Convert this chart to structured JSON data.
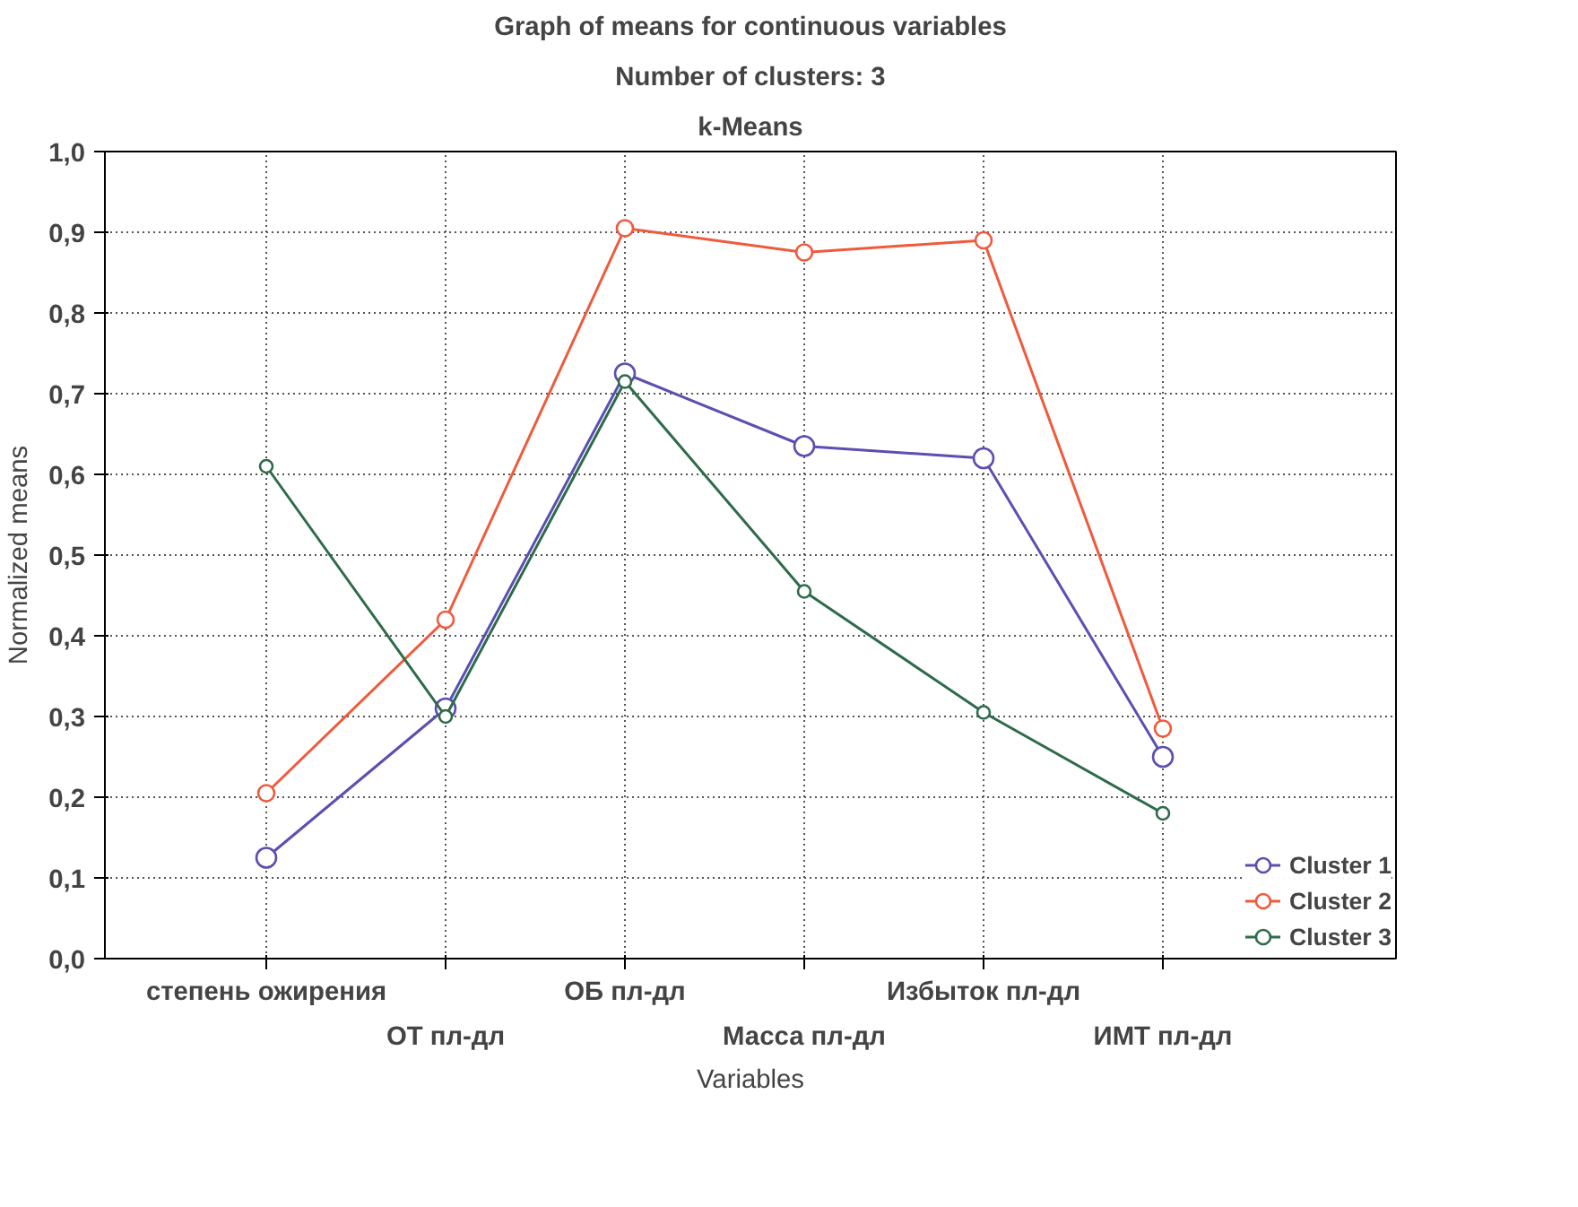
{
  "chart_data": {
    "type": "line",
    "title": "Graph of means for continuous variables",
    "subtitle": "Number of clusters: 3",
    "annotations": [
      "k-Means"
    ],
    "xlabel": "Variables",
    "ylabel": "Normalized means",
    "categories": [
      "степень ожирения",
      "ОТ пл-дл",
      "ОБ пл-дл",
      "Масса пл-дл",
      "Избыток пл-дл",
      "ИМТ пл-дл"
    ],
    "series": [
      {
        "name": "Cluster 1",
        "color": "#5b4fb0",
        "values": [
          0.125,
          0.31,
          0.725,
          0.635,
          0.62,
          0.25
        ]
      },
      {
        "name": "Cluster 2",
        "color": "#f05a3c",
        "values": [
          0.205,
          0.42,
          0.905,
          0.875,
          0.89,
          0.285
        ]
      },
      {
        "name": "Cluster 3",
        "color": "#2e6b4a",
        "values": [
          0.61,
          0.3,
          0.715,
          0.455,
          0.305,
          0.18
        ]
      }
    ],
    "ylim": [
      0,
      1
    ],
    "yticks": [
      {
        "value": 0,
        "label": "0,0"
      },
      {
        "value": 0.1,
        "label": "0,1"
      },
      {
        "value": 0.2,
        "label": "0,2"
      },
      {
        "value": 0.3,
        "label": "0,3"
      },
      {
        "value": 0.4,
        "label": "0,4"
      },
      {
        "value": 0.5,
        "label": "0,5"
      },
      {
        "value": 0.6,
        "label": "0,6"
      },
      {
        "value": 0.7,
        "label": "0,7"
      },
      {
        "value": 0.8,
        "label": "0,8"
      },
      {
        "value": 0.9,
        "label": "0,9"
      },
      {
        "value": 1,
        "label": "1,0"
      }
    ],
    "grid": true,
    "legend": "bottom right",
    "marker": "circle",
    "line_style": "solid"
  }
}
